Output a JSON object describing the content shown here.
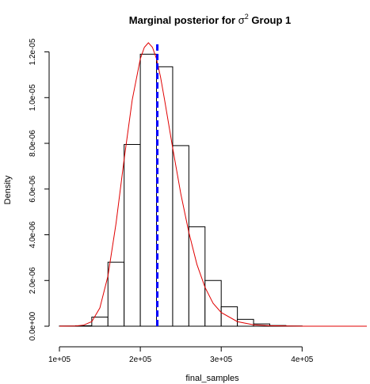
{
  "chart_data": {
    "type": "histogram",
    "title_prefix": "Marginal posterior for ",
    "title_symbol": "σ",
    "title_superscript": "2",
    "title_suffix": " Group 1",
    "xlabel": "final_samples",
    "ylabel": "Density",
    "xlim": [
      100000,
      480000
    ],
    "ylim": [
      0,
      1.24e-05
    ],
    "x_ticks": [
      {
        "value": 100000,
        "label": "1e+05"
      },
      {
        "value": 200000,
        "label": "2e+05"
      },
      {
        "value": 300000,
        "label": "3e+05"
      },
      {
        "value": 400000,
        "label": "4e+05"
      }
    ],
    "y_ticks": [
      {
        "value": 0,
        "label": "0.0e+00"
      },
      {
        "value": 2e-06,
        "label": "2.0e-06"
      },
      {
        "value": 4e-06,
        "label": "4.0e-06"
      },
      {
        "value": 6e-06,
        "label": "6.0e-06"
      },
      {
        "value": 8e-06,
        "label": "8.0e-06"
      },
      {
        "value": 1e-05,
        "label": "1.0e-05"
      },
      {
        "value": 1.2e-05,
        "label": "1.2e-05"
      }
    ],
    "bins": [
      {
        "start": 100000,
        "end": 120000,
        "density": 1e-08
      },
      {
        "start": 120000,
        "end": 140000,
        "density": 2e-08
      },
      {
        "start": 140000,
        "end": 160000,
        "density": 4e-07
      },
      {
        "start": 160000,
        "end": 180000,
        "density": 2.8e-06
      },
      {
        "start": 180000,
        "end": 200000,
        "density": 7.95e-06
      },
      {
        "start": 200000,
        "end": 220000,
        "density": 1.19e-05
      },
      {
        "start": 220000,
        "end": 240000,
        "density": 1.135e-05
      },
      {
        "start": 240000,
        "end": 260000,
        "density": 7.9e-06
      },
      {
        "start": 260000,
        "end": 280000,
        "density": 4.35e-06
      },
      {
        "start": 280000,
        "end": 300000,
        "density": 2e-06
      },
      {
        "start": 300000,
        "end": 320000,
        "density": 8.5e-07
      },
      {
        "start": 320000,
        "end": 340000,
        "density": 3e-07
      },
      {
        "start": 340000,
        "end": 360000,
        "density": 1e-07
      },
      {
        "start": 360000,
        "end": 380000,
        "density": 3e-08
      },
      {
        "start": 380000,
        "end": 400000,
        "density": 1e-08
      }
    ],
    "density_curve": {
      "color": "#e00000",
      "x": [
        100000,
        120000,
        130000,
        140000,
        150000,
        160000,
        170000,
        180000,
        190000,
        200000,
        205000,
        210000,
        215000,
        220000,
        225000,
        230000,
        240000,
        250000,
        260000,
        270000,
        280000,
        290000,
        300000,
        320000,
        340000,
        360000,
        380000,
        400000,
        440000,
        480000
      ],
      "y": [
        0,
        1e-08,
        5e-08,
        2e-07,
        8e-07,
        2.2e-06,
        4.5e-06,
        7.3e-06,
        9.9e-06,
        1.17e-05,
        1.22e-05,
        1.24e-05,
        1.22e-05,
        1.17e-05,
        1.09e-05,
        9.9e-06,
        7.8e-06,
        5.8e-06,
        4.1e-06,
        2.7e-06,
        1.7e-06,
        1e-06,
        6e-07,
        2e-07,
        6e-08,
        2e-08,
        1e-08,
        0,
        0,
        0
      ]
    },
    "reference_line": {
      "x": 221000,
      "color": "#0000ff"
    },
    "grid": false,
    "legend": "none"
  }
}
